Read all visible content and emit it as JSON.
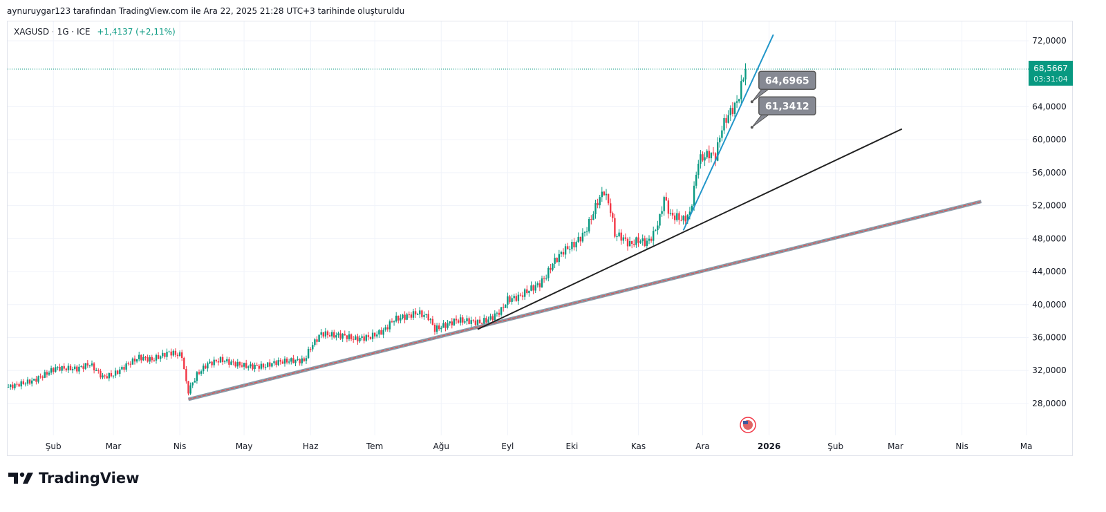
{
  "caption": "aynuruygar123 tarafından TradingView.com ile Ara 22, 2025 21:28 UTC+3 tarihinde oluşturuldu",
  "legend": {
    "symbol": "XAGUSD · 1G · ICE",
    "change": "+1,4137 (+2,11%)"
  },
  "price_label": {
    "price": "68,5667",
    "countdown": "03:31:04"
  },
  "logo_text": "TradingView",
  "colors": {
    "up": "#089981",
    "down": "#f23645",
    "blue_line": "#2196c9",
    "black_line": "#222222",
    "lower_line": "#d65a5a",
    "callout": "#868993"
  },
  "chart_data": {
    "type": "candlestick",
    "title": "XAGUSD · 1G · ICE",
    "x_unit": "day of 2025",
    "ylim": [
      24,
      74
    ],
    "y_ticks": [
      72,
      64,
      60,
      56,
      52,
      48,
      44,
      40,
      36,
      32,
      28
    ],
    "y_tick_labels": [
      "72,0000",
      "64,0000",
      "60,0000",
      "56,0000",
      "52,0000",
      "48,0000",
      "44,0000",
      "40,0000",
      "36,0000",
      "32,0000",
      "28,0000"
    ],
    "x_ticks": [
      {
        "day": 32,
        "label": "Şub"
      },
      {
        "day": 60,
        "label": "Mar"
      },
      {
        "day": 91,
        "label": "Nis"
      },
      {
        "day": 121,
        "label": "May"
      },
      {
        "day": 152,
        "label": "Haz"
      },
      {
        "day": 182,
        "label": "Tem"
      },
      {
        "day": 213,
        "label": "Ağu"
      },
      {
        "day": 244,
        "label": "Eyl"
      },
      {
        "day": 274,
        "label": "Eki"
      },
      {
        "day": 305,
        "label": "Kas"
      },
      {
        "day": 335,
        "label": "Ara"
      },
      {
        "day": 366,
        "label": "2026"
      },
      {
        "day": 397,
        "label": "Şub"
      },
      {
        "day": 425,
        "label": "Mar"
      },
      {
        "day": 456,
        "label": "Nis"
      },
      {
        "day": 486,
        "label": "Ma"
      }
    ],
    "close_anchors": [
      [
        11,
        30.0
      ],
      [
        23,
        30.8
      ],
      [
        28,
        31.5
      ],
      [
        33,
        32.3
      ],
      [
        43,
        32.2
      ],
      [
        49,
        32.8
      ],
      [
        55,
        31.2
      ],
      [
        60,
        31.5
      ],
      [
        67,
        32.8
      ],
      [
        72,
        33.6
      ],
      [
        78,
        33.3
      ],
      [
        86,
        34.2
      ],
      [
        92,
        33.8
      ],
      [
        94,
        30.5
      ],
      [
        95,
        29.5
      ],
      [
        99,
        31.5
      ],
      [
        104,
        32.8
      ],
      [
        110,
        33.3
      ],
      [
        117,
        32.8
      ],
      [
        123,
        32.5
      ],
      [
        130,
        32.5
      ],
      [
        136,
        33.0
      ],
      [
        143,
        33.2
      ],
      [
        149,
        33.2
      ],
      [
        152,
        34.8
      ],
      [
        157,
        36.5
      ],
      [
        162,
        36.3
      ],
      [
        168,
        36.2
      ],
      [
        173,
        35.8
      ],
      [
        180,
        36.1
      ],
      [
        186,
        36.8
      ],
      [
        191,
        38.2
      ],
      [
        197,
        38.6
      ],
      [
        202,
        39.0
      ],
      [
        207,
        38.5
      ],
      [
        210,
        37.0
      ],
      [
        215,
        37.5
      ],
      [
        220,
        38.1
      ],
      [
        226,
        38.0
      ],
      [
        231,
        37.8
      ],
      [
        236,
        38.3
      ],
      [
        241,
        39.3
      ],
      [
        244,
        40.6
      ],
      [
        249,
        40.9
      ],
      [
        254,
        41.8
      ],
      [
        259,
        42.5
      ],
      [
        262,
        43.5
      ],
      [
        265,
        45.0
      ],
      [
        270,
        46.5
      ],
      [
        275,
        47.3
      ],
      [
        280,
        48.7
      ],
      [
        283,
        50.5
      ],
      [
        286,
        52.5
      ],
      [
        289,
        53.8
      ],
      [
        292,
        51.5
      ],
      [
        294,
        48.5
      ],
      [
        297,
        48.2
      ],
      [
        301,
        47.3
      ],
      [
        305,
        47.8
      ],
      [
        309,
        47.5
      ],
      [
        312,
        48.5
      ],
      [
        315,
        50.5
      ],
      [
        317,
        53.0
      ],
      [
        320,
        50.8
      ],
      [
        323,
        50.6
      ],
      [
        326,
        50.3
      ],
      [
        329,
        51.0
      ],
      [
        331,
        54.0
      ],
      [
        333,
        57.5
      ],
      [
        338,
        58.3
      ],
      [
        341,
        58.0
      ],
      [
        344,
        61.5
      ],
      [
        347,
        63.0
      ],
      [
        351,
        64.5
      ],
      [
        353,
        66.5
      ],
      [
        355,
        68.57
      ]
    ],
    "last_price": 68.5667,
    "trendlines": [
      {
        "name": "lower-trendline",
        "from": [
          95,
          28.5
        ],
        "to": [
          465,
          52.5
        ]
      },
      {
        "name": "black-trendline",
        "from": [
          230,
          37.0
        ],
        "to": [
          428,
          61.3
        ]
      },
      {
        "name": "blue-trendline",
        "from": [
          326,
          49.0
        ],
        "to": [
          368,
          72.75
        ]
      }
    ],
    "callouts": [
      {
        "label": "64,6965",
        "day": 358,
        "price": 64.6
      },
      {
        "label": "61,3412",
        "day": 358,
        "price": 61.5
      }
    ]
  }
}
